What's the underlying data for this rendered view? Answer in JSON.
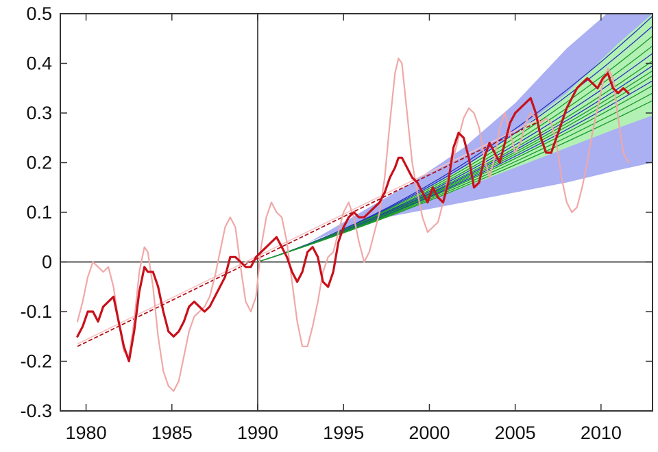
{
  "chart_data": {
    "type": "line",
    "title": "",
    "xlabel": "",
    "ylabel": "",
    "xlim": [
      1978.5,
      2013
    ],
    "ylim": [
      -0.3,
      0.5
    ],
    "grid": false,
    "legend": "none",
    "x_ticks": [
      1980,
      1985,
      1990,
      1995,
      2000,
      2005,
      2010
    ],
    "x_tick_labels": [
      "1980",
      "1985",
      "1990",
      "1995",
      "2000",
      "2005",
      "2010"
    ],
    "y_ticks": [
      -0.3,
      -0.2,
      -0.1,
      0,
      0.1,
      0.2,
      0.3,
      0.4,
      0.5
    ],
    "y_tick_labels": [
      "-0.3",
      "-0.2",
      "-0.1",
      "0",
      "0.1",
      "0.2",
      "0.3",
      "0.4",
      "0.5"
    ],
    "reference_lines": {
      "vertical_x": 1990,
      "horizontal_y": 0
    },
    "colors": {
      "observed_thick": "#c8101a",
      "observed_raw": "#f0a8a8",
      "band_blue": "#aab0f2",
      "band_green": "#b2f0b4",
      "projection_blue": "#2335b8",
      "projection_green": "#1a9a2a",
      "trend_dashed": "#b01018",
      "trend_light": "#f6c2c2",
      "axis": "#555555"
    },
    "bands": {
      "blue": {
        "x": [
          1990,
          1993,
          1996,
          1999,
          2002,
          2005,
          2008,
          2011,
          2013
        ],
        "low": [
          0,
          0.04,
          0.08,
          0.1,
          0.12,
          0.14,
          0.16,
          0.185,
          0.2
        ],
        "high": [
          0,
          0.04,
          0.1,
          0.16,
          0.23,
          0.32,
          0.43,
          0.52,
          0.58
        ]
      },
      "green": {
        "x": [
          1990,
          1993,
          1996,
          1999,
          2002,
          2005,
          2008,
          2011,
          2013
        ],
        "low": [
          0,
          0.035,
          0.07,
          0.11,
          0.15,
          0.19,
          0.23,
          0.27,
          0.295
        ],
        "high": [
          0,
          0.035,
          0.08,
          0.13,
          0.19,
          0.26,
          0.34,
          0.44,
          0.5
        ]
      }
    },
    "projections": [
      {
        "end": 0.495,
        "color": "blue"
      },
      {
        "end": 0.475,
        "color": "blue"
      },
      {
        "end": 0.455,
        "color": "green"
      },
      {
        "end": 0.435,
        "color": "green"
      },
      {
        "end": 0.42,
        "color": "blue"
      },
      {
        "end": 0.405,
        "color": "green"
      },
      {
        "end": 0.395,
        "color": "blue"
      },
      {
        "end": 0.385,
        "color": "green"
      },
      {
        "end": 0.375,
        "color": "green"
      },
      {
        "end": 0.365,
        "color": "blue"
      },
      {
        "end": 0.355,
        "color": "green"
      },
      {
        "end": 0.34,
        "color": "green"
      },
      {
        "end": 0.325,
        "color": "green"
      }
    ],
    "trend_lines": [
      {
        "style": "dashed",
        "x": [
          1979.5,
          2006.5
        ],
        "y": [
          -0.17,
          0.285
        ]
      },
      {
        "style": "light",
        "x": [
          1979.5,
          2006.5
        ],
        "y": [
          -0.165,
          0.29
        ]
      }
    ],
    "series": [
      {
        "style": "raw",
        "x": [
          1979.5,
          1979.8,
          1980.1,
          1980.4,
          1980.7,
          1981.0,
          1981.3,
          1981.6,
          1981.9,
          1982.2,
          1982.5,
          1982.8,
          1983.1,
          1983.4,
          1983.6,
          1983.9,
          1984.2,
          1984.5,
          1984.8,
          1985.1,
          1985.4,
          1985.7,
          1986.0,
          1986.3,
          1986.6,
          1986.9,
          1987.2,
          1987.5,
          1987.8,
          1988.1,
          1988.4,
          1988.7,
          1989.0,
          1989.3,
          1989.6,
          1989.9,
          1990.2,
          1990.5,
          1990.8,
          1991.1,
          1991.4,
          1991.7,
          1992.0,
          1992.3,
          1992.6,
          1992.9,
          1993.2,
          1993.5,
          1993.8,
          1994.1,
          1994.4,
          1994.7,
          1995.0,
          1995.3,
          1995.6,
          1995.9,
          1996.2,
          1996.5,
          1996.8,
          1997.1,
          1997.4,
          1997.7,
          1998.0,
          1998.2,
          1998.4,
          1998.7,
          1999.0,
          1999.3,
          1999.6,
          1999.9,
          2000.2,
          2000.5,
          2000.8,
          2001.1,
          2001.4,
          2001.7,
          2002.0,
          2002.3,
          2002.6,
          2002.9,
          2003.2,
          2003.5,
          2003.8,
          2004.1,
          2004.4,
          2004.7,
          2005.0,
          2005.3,
          2005.6,
          2005.9,
          2006.2,
          2006.5,
          2006.8,
          2007.1,
          2007.4,
          2007.7,
          2008.0,
          2008.3,
          2008.6,
          2008.9,
          2009.2,
          2009.5,
          2009.8,
          2010.1,
          2010.4,
          2010.7,
          2011.0,
          2011.3,
          2011.6
        ],
        "y": [
          -0.12,
          -0.08,
          -0.03,
          0.0,
          -0.01,
          -0.02,
          -0.01,
          -0.05,
          -0.12,
          -0.18,
          -0.19,
          -0.12,
          -0.02,
          0.03,
          0.02,
          -0.05,
          -0.15,
          -0.22,
          -0.25,
          -0.26,
          -0.24,
          -0.19,
          -0.14,
          -0.11,
          -0.1,
          -0.09,
          -0.07,
          -0.03,
          0.02,
          0.07,
          0.09,
          0.07,
          -0.01,
          -0.08,
          -0.1,
          -0.07,
          0.03,
          0.09,
          0.12,
          0.1,
          0.09,
          0.04,
          -0.04,
          -0.12,
          -0.17,
          -0.17,
          -0.13,
          -0.08,
          -0.02,
          0.01,
          0.02,
          0.06,
          0.1,
          0.12,
          0.09,
          0.04,
          0.0,
          0.02,
          0.06,
          0.1,
          0.17,
          0.28,
          0.38,
          0.41,
          0.4,
          0.3,
          0.2,
          0.14,
          0.09,
          0.06,
          0.07,
          0.08,
          0.12,
          0.17,
          0.21,
          0.25,
          0.29,
          0.31,
          0.3,
          0.27,
          0.21,
          0.17,
          0.21,
          0.27,
          0.3,
          0.26,
          0.22,
          0.24,
          0.28,
          0.3,
          0.29,
          0.28,
          0.29,
          0.28,
          0.24,
          0.17,
          0.12,
          0.1,
          0.11,
          0.15,
          0.2,
          0.26,
          0.31,
          0.36,
          0.39,
          0.37,
          0.29,
          0.22,
          0.2
        ]
      },
      {
        "style": "smoothed",
        "x": [
          1979.5,
          1979.8,
          1980.1,
          1980.4,
          1980.7,
          1981.0,
          1981.3,
          1981.6,
          1981.9,
          1982.2,
          1982.5,
          1982.8,
          1983.1,
          1983.4,
          1983.6,
          1983.9,
          1984.2,
          1984.5,
          1984.8,
          1985.1,
          1985.4,
          1985.7,
          1986.0,
          1986.3,
          1986.6,
          1986.9,
          1987.2,
          1987.5,
          1987.8,
          1988.1,
          1988.4,
          1988.7,
          1989.0,
          1989.3,
          1989.6,
          1989.9,
          1990.2,
          1990.5,
          1990.8,
          1991.1,
          1991.4,
          1991.7,
          1992.0,
          1992.3,
          1992.6,
          1992.9,
          1993.2,
          1993.5,
          1993.8,
          1994.1,
          1994.4,
          1994.7,
          1995.0,
          1995.3,
          1995.6,
          1995.9,
          1996.2,
          1996.5,
          1996.8,
          1997.1,
          1997.4,
          1997.7,
          1998.0,
          1998.2,
          1998.4,
          1998.7,
          1999.0,
          1999.3,
          1999.6,
          1999.9,
          2000.2,
          2000.5,
          2000.8,
          2001.1,
          2001.4,
          2001.7,
          2002.0,
          2002.3,
          2002.6,
          2002.9,
          2003.2,
          2003.5,
          2003.8,
          2004.1,
          2004.4,
          2004.7,
          2005.0,
          2005.3,
          2005.6,
          2005.9,
          2006.2,
          2006.5,
          2006.8,
          2007.1,
          2007.4,
          2007.7,
          2008.0,
          2008.3,
          2008.6,
          2008.9,
          2009.2,
          2009.5,
          2009.8,
          2010.1,
          2010.4,
          2010.7,
          2011.0,
          2011.3,
          2011.6
        ],
        "y": [
          -0.15,
          -0.13,
          -0.1,
          -0.1,
          -0.12,
          -0.09,
          -0.08,
          -0.07,
          -0.12,
          -0.17,
          -0.2,
          -0.14,
          -0.06,
          -0.01,
          -0.02,
          -0.02,
          -0.05,
          -0.1,
          -0.14,
          -0.15,
          -0.14,
          -0.12,
          -0.09,
          -0.08,
          -0.09,
          -0.1,
          -0.09,
          -0.07,
          -0.05,
          -0.03,
          0.01,
          0.01,
          0.0,
          -0.01,
          -0.01,
          0.01,
          0.02,
          0.03,
          0.04,
          0.05,
          0.03,
          0.01,
          -0.02,
          -0.04,
          -0.02,
          0.02,
          0.03,
          0.01,
          -0.04,
          -0.05,
          -0.02,
          0.04,
          0.07,
          0.09,
          0.1,
          0.09,
          0.09,
          0.1,
          0.11,
          0.12,
          0.14,
          0.17,
          0.19,
          0.21,
          0.21,
          0.19,
          0.17,
          0.16,
          0.14,
          0.12,
          0.15,
          0.13,
          0.12,
          0.16,
          0.23,
          0.26,
          0.25,
          0.21,
          0.15,
          0.16,
          0.21,
          0.24,
          0.22,
          0.2,
          0.24,
          0.28,
          0.3,
          0.31,
          0.32,
          0.33,
          0.3,
          0.25,
          0.22,
          0.22,
          0.25,
          0.28,
          0.31,
          0.33,
          0.35,
          0.36,
          0.37,
          0.36,
          0.35,
          0.37,
          0.38,
          0.35,
          0.34,
          0.35,
          0.34
        ]
      }
    ]
  }
}
